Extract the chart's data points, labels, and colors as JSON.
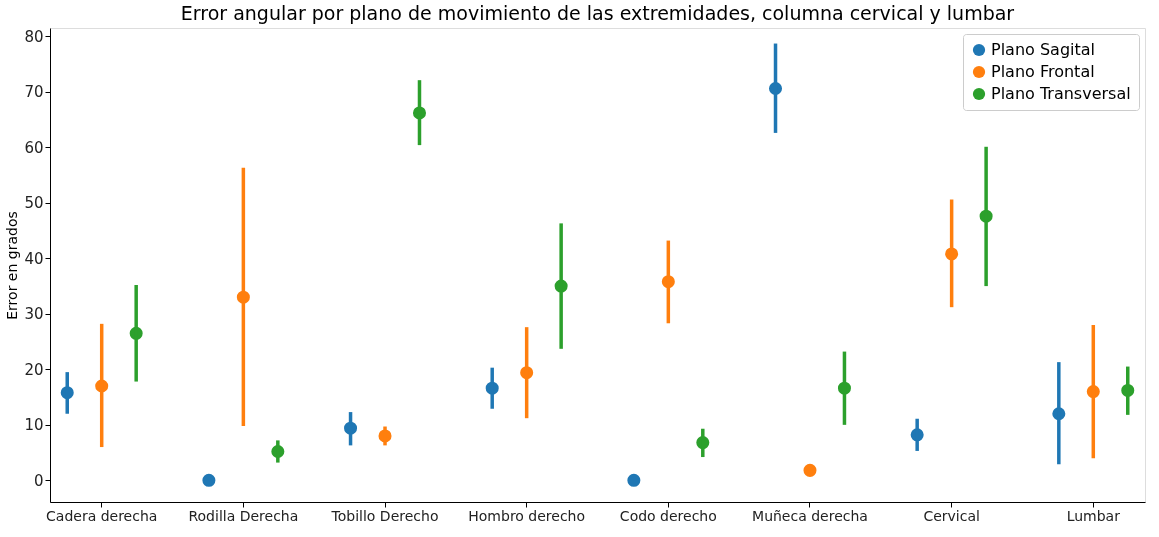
{
  "chart_data": {
    "type": "scatter",
    "title": "Error angular por plano de movimiento de las extremidades, columna cervical y lumbar",
    "ylabel": "Error en grados",
    "categories": [
      "Cadera derecha",
      "Rodilla Derecha",
      "Tobillo Derecho",
      "Hombro derecho",
      "Codo derecho",
      "Muñeca derecha",
      "Cervical",
      "Lumbar"
    ],
    "series": [
      {
        "name": "Plano Sagital",
        "color": "#1f77b4",
        "values": [
          15.8,
          0,
          9.4,
          16.6,
          0,
          70.6,
          8.2,
          12
        ],
        "errors": [
          [
            12,
            19.5
          ],
          null,
          [
            6.3,
            12.3
          ],
          [
            12.9,
            20.3
          ],
          null,
          [
            62.6,
            78.7
          ],
          [
            5.3,
            11.1
          ],
          [
            2.9,
            21.3
          ]
        ]
      },
      {
        "name": "Plano Frontal",
        "color": "#ff7f0e",
        "values": [
          17,
          33,
          8,
          19.4,
          35.8,
          1.8,
          40.8,
          16
        ],
        "errors": [
          [
            6,
            28.2
          ],
          [
            9.8,
            56.3
          ],
          [
            6.3,
            9.7
          ],
          [
            11.2,
            27.6
          ],
          [
            28.3,
            43.2
          ],
          null,
          [
            31.2,
            50.6
          ],
          [
            4,
            28
          ]
        ]
      },
      {
        "name": "Plano Transversal",
        "color": "#2ca02c",
        "values": [
          26.5,
          5.2,
          66.2,
          35,
          6.8,
          16.6,
          47.6,
          16.2
        ],
        "errors": [
          [
            17.8,
            35.2
          ],
          [
            3.2,
            7.2
          ],
          [
            60.4,
            72.1
          ],
          [
            23.7,
            46.3
          ],
          [
            4.2,
            9.3
          ],
          [
            10,
            23.2
          ],
          [
            35,
            60.1
          ],
          [
            11.8,
            20.5
          ]
        ]
      }
    ],
    "ylim": [
      -3.9,
      81.5
    ],
    "yticks": [
      0,
      10,
      20,
      30,
      40,
      50,
      60,
      70,
      80
    ],
    "marker": "circle",
    "legend": "top right",
    "grid": false
  }
}
